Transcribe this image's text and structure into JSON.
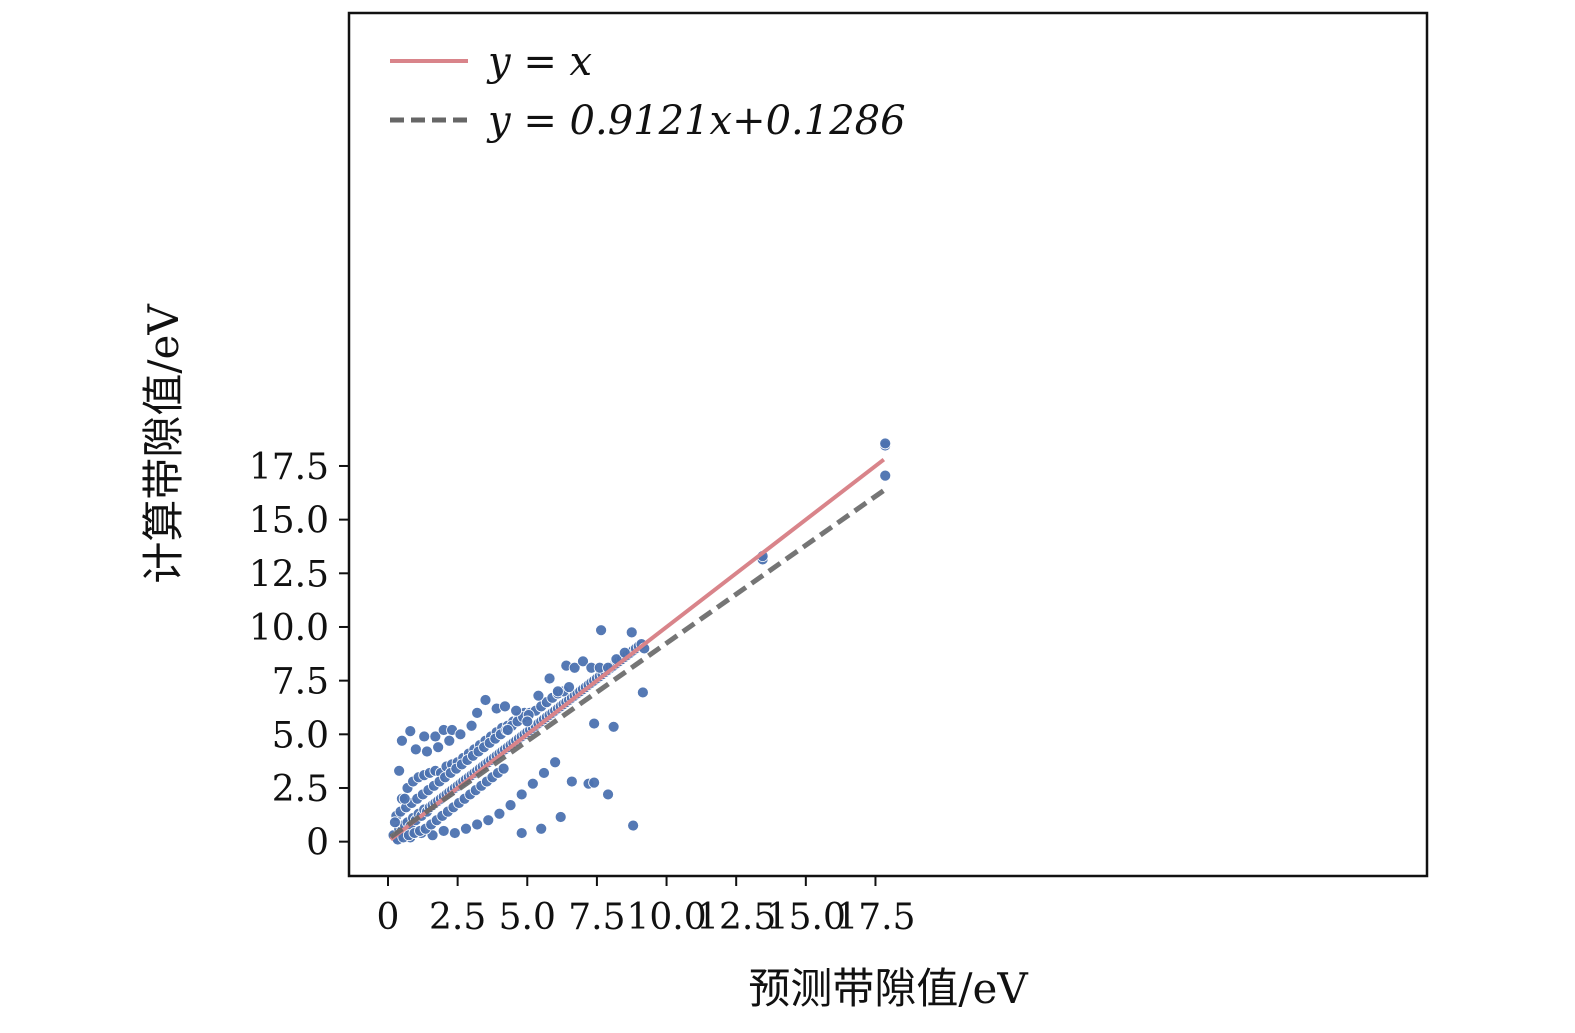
{
  "chart_data": {
    "type": "scatter",
    "title": "",
    "xlabel": "预测带隙值/eV",
    "ylabel": "计算带隙值/eV",
    "xlim": [
      -1.4,
      37.3
    ],
    "ylim": [
      -1.6,
      38.6
    ],
    "x_ticks": [
      0,
      2.5,
      5.0,
      7.5,
      10.0,
      12.5,
      15.0,
      17.5
    ],
    "x_tick_labels": [
      "0",
      "2.5",
      "5.0",
      "7.5",
      "10.0",
      "12.5",
      "15.0",
      "17.5"
    ],
    "y_ticks": [
      0,
      2.5,
      5.0,
      7.5,
      10.0,
      12.5,
      15.0,
      17.5
    ],
    "y_tick_labels": [
      "0",
      "2.5",
      "5.0",
      "7.5",
      "10.0",
      "12.5",
      "15.0",
      "17.5"
    ],
    "grid": false,
    "legend_position": "top-left",
    "colors": {
      "points": "#4c72b0",
      "identity_line": "#d9848a",
      "fit_line": "#666666"
    },
    "series": [
      {
        "name": "y = x",
        "kind": "line",
        "style": "solid",
        "x": [
          0.1,
          17.8
        ],
        "y": [
          0.1,
          17.8
        ]
      },
      {
        "name": "y = 0.9121x+0.1286",
        "kind": "line",
        "style": "dashed",
        "x": [
          0.1,
          17.8
        ],
        "y": [
          0.22,
          16.36
        ]
      },
      {
        "name": "",
        "kind": "scatter",
        "x": [
          0.2,
          0.3,
          0.4,
          0.5,
          0.6,
          0.7,
          0.8,
          0.9,
          1.0,
          1.1,
          1.2,
          1.3,
          1.4,
          1.5,
          1.6,
          1.7,
          1.8,
          1.9,
          2.0,
          2.1,
          2.2,
          2.3,
          2.4,
          2.5,
          2.6,
          2.7,
          2.8,
          2.9,
          3.0,
          3.1,
          3.2,
          3.3,
          3.4,
          3.5,
          3.6,
          3.7,
          3.8,
          3.9,
          4.0,
          4.1,
          4.2,
          4.3,
          4.4,
          4.5,
          4.6,
          4.7,
          4.8,
          4.9,
          5.0,
          5.1,
          5.2,
          5.3,
          5.4,
          5.5,
          5.6,
          5.7,
          5.8,
          5.9,
          6.0,
          6.1,
          6.2,
          6.3,
          6.4,
          6.5,
          6.6,
          6.7,
          6.8,
          6.9,
          7.0,
          7.1,
          7.2,
          7.3,
          7.4,
          7.5,
          7.6,
          7.7,
          7.8,
          7.9,
          8.0,
          8.1,
          8.2,
          8.3,
          8.4,
          8.5,
          8.6,
          8.7,
          8.8,
          8.9,
          9.0,
          9.1,
          9.2,
          0.3,
          0.5,
          0.7,
          0.9,
          1.1,
          1.3,
          1.5,
          1.7,
          1.9,
          2.1,
          2.3,
          2.5,
          2.7,
          2.9,
          3.1,
          3.3,
          3.5,
          3.7,
          3.9,
          4.1,
          4.3,
          4.5,
          4.7,
          4.9,
          5.1,
          5.3,
          5.5,
          5.7,
          5.9,
          6.1,
          6.3,
          6.5,
          0.4,
          0.8,
          1.2,
          1.6,
          2.0,
          2.4,
          2.8,
          3.2,
          3.6,
          4.0,
          4.4,
          4.8,
          5.2,
          5.6,
          6.0,
          0.25,
          0.45,
          0.65,
          0.85,
          1.05,
          1.25,
          1.45,
          1.65,
          1.85,
          2.05,
          2.25,
          2.45,
          2.65,
          2.85,
          3.05,
          3.25,
          3.45,
          3.65,
          3.85,
          4.05,
          4.25,
          4.45,
          4.65,
          4.85,
          5.05,
          0.35,
          0.55,
          0.75,
          0.95,
          1.15,
          1.35,
          1.55,
          1.75,
          1.95,
          2.15,
          2.35,
          2.55,
          2.75,
          2.95,
          3.15,
          3.35,
          3.55,
          3.75,
          3.95,
          4.15,
          0.5,
          0.8,
          0.4,
          1.0,
          1.3,
          1.7,
          2.0,
          2.3,
          0.6,
          2.2,
          2.6,
          3.0,
          1.4,
          1.8,
          3.5,
          3.2,
          3.9,
          4.2,
          4.6,
          4.3,
          5.0,
          5.4,
          5.8,
          6.1,
          6.4,
          6.7,
          7.0,
          7.3,
          7.6,
          7.9,
          8.2,
          8.5,
          6.6,
          7.2,
          7.4,
          7.65,
          8.1,
          8.75,
          8.8,
          9.15,
          7.4,
          7.9,
          6.2,
          5.5,
          4.8,
          13.45,
          13.45,
          17.85,
          17.85,
          17.85
        ],
        "y": [
          0.3,
          0.2,
          0.6,
          0.5,
          0.8,
          0.9,
          0.7,
          1.1,
          1.0,
          1.3,
          1.2,
          1.5,
          1.4,
          1.6,
          1.7,
          1.8,
          1.9,
          2.0,
          2.1,
          2.2,
          2.3,
          2.4,
          2.5,
          2.6,
          2.7,
          2.8,
          2.9,
          3.0,
          3.1,
          3.2,
          3.3,
          3.4,
          3.5,
          3.6,
          3.7,
          3.8,
          3.9,
          4.0,
          4.1,
          4.2,
          4.3,
          4.4,
          4.5,
          4.6,
          4.7,
          4.8,
          4.9,
          5.0,
          5.1,
          5.2,
          5.3,
          5.4,
          5.5,
          5.6,
          5.7,
          5.8,
          5.9,
          6.0,
          6.1,
          6.2,
          6.3,
          6.4,
          6.5,
          6.6,
          6.7,
          6.8,
          6.9,
          7.0,
          7.1,
          7.2,
          7.3,
          7.4,
          7.5,
          7.6,
          7.7,
          7.8,
          7.9,
          8.0,
          8.1,
          8.2,
          8.3,
          8.4,
          8.5,
          8.6,
          8.7,
          8.8,
          8.9,
          9.0,
          9.1,
          9.2,
          9.0,
          1.2,
          2.0,
          2.5,
          2.8,
          3.0,
          3.1,
          3.2,
          3.3,
          3.2,
          3.5,
          3.6,
          3.7,
          3.9,
          4.1,
          4.3,
          4.5,
          4.7,
          4.9,
          5.1,
          5.3,
          5.4,
          5.6,
          5.8,
          6.0,
          6.0,
          6.1,
          6.3,
          6.5,
          6.7,
          6.9,
          7.0,
          7.2,
          0.3,
          0.2,
          0.4,
          0.3,
          0.5,
          0.4,
          0.6,
          0.8,
          1.0,
          1.3,
          1.7,
          2.2,
          2.7,
          3.2,
          3.7,
          0.9,
          1.4,
          1.6,
          1.8,
          2.0,
          2.2,
          2.4,
          2.6,
          2.8,
          3.0,
          3.2,
          3.4,
          3.6,
          3.8,
          4.0,
          4.2,
          4.4,
          4.6,
          4.8,
          5.0,
          5.2,
          5.4,
          5.6,
          5.8,
          5.9,
          0.1,
          0.2,
          0.3,
          0.4,
          0.5,
          0.6,
          0.8,
          1.0,
          1.2,
          1.4,
          1.6,
          1.8,
          2.0,
          2.2,
          2.4,
          2.6,
          2.8,
          3.0,
          3.2,
          3.4,
          4.7,
          5.15,
          3.3,
          4.3,
          4.9,
          4.9,
          5.2,
          5.2,
          2.0,
          4.7,
          5.0,
          5.4,
          4.2,
          4.4,
          6.6,
          6.0,
          6.2,
          6.3,
          6.1,
          5.2,
          5.6,
          6.8,
          7.6,
          7.0,
          8.2,
          8.1,
          8.4,
          8.1,
          8.1,
          8.1,
          8.5,
          8.8,
          2.8,
          2.7,
          5.5,
          9.85,
          5.35,
          9.75,
          0.75,
          6.95,
          2.75,
          2.2,
          1.15,
          0.6,
          0.4,
          13.15,
          13.3,
          18.45,
          18.55,
          17.05
        ]
      }
    ]
  }
}
